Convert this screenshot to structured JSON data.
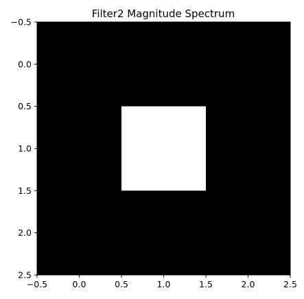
{
  "chart_data": {
    "type": "heatmap",
    "title": "Filter2 Magnitude Spectrum",
    "xlabel": "",
    "ylabel": "",
    "xlim": [
      -0.5,
      2.5
    ],
    "ylim": [
      2.5,
      -0.5
    ],
    "y_axis_inverted": true,
    "grid": false,
    "colormap": "gray",
    "colors": {
      "low": "#000000",
      "high": "#ffffff"
    },
    "x_ticks": [
      -0.5,
      0.0,
      0.5,
      1.0,
      1.5,
      2.0,
      2.5
    ],
    "x_tick_labels": [
      "−0.5",
      "0.0",
      "0.5",
      "1.0",
      "1.5",
      "2.0",
      "2.5"
    ],
    "y_ticks": [
      -0.5,
      0.0,
      0.5,
      1.0,
      1.5,
      2.0,
      2.5
    ],
    "y_tick_labels": [
      "−0.5",
      "0.0",
      "0.5",
      "1.0",
      "1.5",
      "2.0",
      "2.5"
    ],
    "matrix": [
      [
        0,
        0,
        0
      ],
      [
        0,
        1,
        0
      ],
      [
        0,
        0,
        0
      ]
    ]
  }
}
